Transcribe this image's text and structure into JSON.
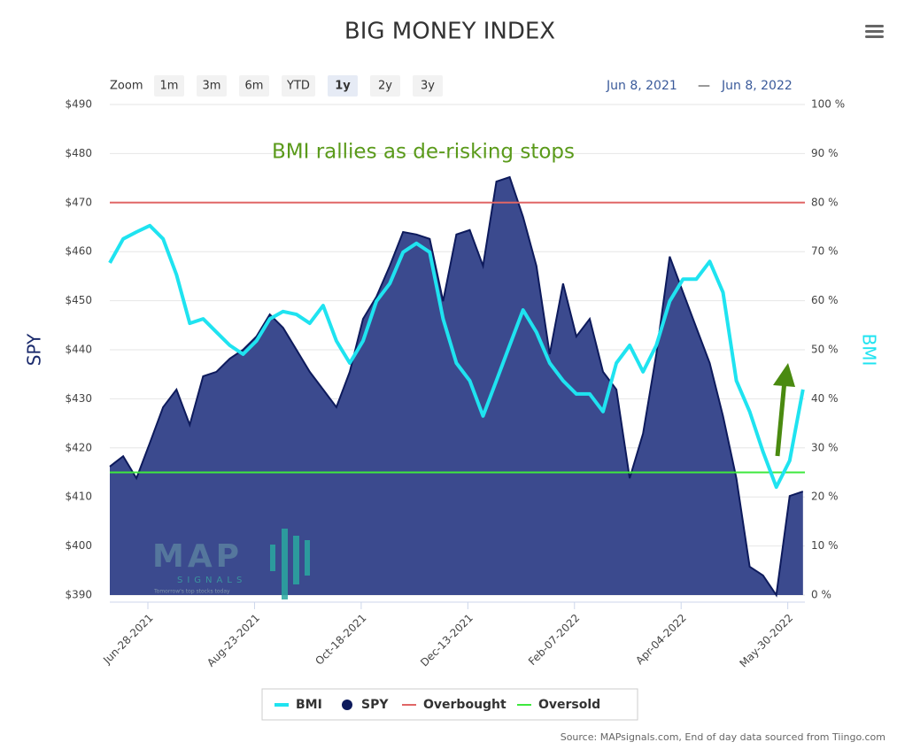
{
  "chart_data": {
    "type": "combo",
    "title": "BIG MONEY INDEX",
    "annotation": "BMI rallies as de-risking stops",
    "source": "Source: MAPsignals.com, End of day data sourced from Tiingo.com",
    "zoom": {
      "label": "Zoom",
      "buttons": [
        "1m",
        "3m",
        "6m",
        "YTD",
        "1y",
        "2y",
        "3y"
      ],
      "selected": 4
    },
    "range": {
      "from": "Jun 8, 2021",
      "sep": "—",
      "to": "Jun 8, 2022"
    },
    "logo": {
      "name": "MAP",
      "sub": "SIGNALS",
      "tagline": "Tomorrow's top stocks today"
    },
    "ylabel": "SPY",
    "y2label": "BMI",
    "xlim": [
      "2021-06-08",
      "2022-06-08"
    ],
    "xticks": [
      {
        "value": "2021-06-28",
        "label": "Jun-28-2021"
      },
      {
        "value": "2021-08-23",
        "label": "Aug-23-2021"
      },
      {
        "value": "2021-10-18",
        "label": "Oct-18-2021"
      },
      {
        "value": "2021-12-13",
        "label": "Dec-13-2021"
      },
      {
        "value": "2022-02-07",
        "label": "Feb-07-2022"
      },
      {
        "value": "2022-04-04",
        "label": "Apr-04-2022"
      },
      {
        "value": "2022-05-30",
        "label": "May-30-2022"
      }
    ],
    "ylim": [
      390,
      490
    ],
    "yticks": [
      {
        "value": 390,
        "label": "$390"
      },
      {
        "value": 400,
        "label": "$400"
      },
      {
        "value": 410,
        "label": "$410"
      },
      {
        "value": 420,
        "label": "$420"
      },
      {
        "value": 430,
        "label": "$430"
      },
      {
        "value": 440,
        "label": "$440"
      },
      {
        "value": 450,
        "label": "$450"
      },
      {
        "value": 460,
        "label": "$460"
      },
      {
        "value": 470,
        "label": "$470"
      },
      {
        "value": 480,
        "label": "$480"
      },
      {
        "value": 490,
        "label": "$490"
      }
    ],
    "y2lim": [
      0,
      100
    ],
    "y2ticks": [
      {
        "value": 0,
        "label": "0 %"
      },
      {
        "value": 10,
        "label": "10 %"
      },
      {
        "value": 20,
        "label": "20 %"
      },
      {
        "value": 30,
        "label": "30 %"
      },
      {
        "value": 40,
        "label": "40 %"
      },
      {
        "value": 50,
        "label": "50 %"
      },
      {
        "value": 60,
        "label": "60 %"
      },
      {
        "value": 70,
        "label": "70 %"
      },
      {
        "value": 80,
        "label": "80 %"
      },
      {
        "value": 90,
        "label": "90 %"
      },
      {
        "value": 100,
        "label": "100 %"
      }
    ],
    "grid": true,
    "x": [
      "2021-06-08",
      "2021-06-15",
      "2021-06-22",
      "2021-06-29",
      "2021-07-06",
      "2021-07-13",
      "2021-07-20",
      "2021-07-27",
      "2021-08-03",
      "2021-08-10",
      "2021-08-17",
      "2021-08-24",
      "2021-08-31",
      "2021-09-07",
      "2021-09-14",
      "2021-09-21",
      "2021-09-28",
      "2021-10-05",
      "2021-10-12",
      "2021-10-19",
      "2021-10-26",
      "2021-11-02",
      "2021-11-09",
      "2021-11-16",
      "2021-11-23",
      "2021-11-30",
      "2021-12-07",
      "2021-12-14",
      "2021-12-21",
      "2021-12-28",
      "2022-01-04",
      "2022-01-11",
      "2022-01-18",
      "2022-01-25",
      "2022-02-01",
      "2022-02-08",
      "2022-02-15",
      "2022-02-22",
      "2022-03-01",
      "2022-03-08",
      "2022-03-15",
      "2022-03-22",
      "2022-03-29",
      "2022-04-05",
      "2022-04-12",
      "2022-04-19",
      "2022-04-26",
      "2022-05-03",
      "2022-05-10",
      "2022-05-17",
      "2022-05-24",
      "2022-05-31",
      "2022-06-07"
    ],
    "series": [
      {
        "name": "BMI",
        "type": "line",
        "axis": "y2",
        "color": "#1fe3f0",
        "values": [
          67.7,
          72.6,
          74,
          75.3,
          72.6,
          65.3,
          55.4,
          56.3,
          53.6,
          50.9,
          49.1,
          51.8,
          56.3,
          57.8,
          57.2,
          55.4,
          59,
          51.8,
          47.3,
          51.8,
          59.9,
          63.5,
          69.9,
          71.7,
          69.9,
          56.3,
          47.3,
          43.7,
          36.5,
          43.7,
          50.9,
          58.1,
          53.6,
          47.3,
          43.7,
          41,
          41,
          37.4,
          47.3,
          50.9,
          45.5,
          50.9,
          59.9,
          64.4,
          64.4,
          68,
          61.7,
          43.7,
          37.4,
          29.2,
          22,
          27.4,
          41.9
        ]
      },
      {
        "name": "SPY",
        "type": "area",
        "axis": "y",
        "color": "#0d1a5c",
        "fill": "#3b4a8e",
        "values": [
          416.2,
          418.3,
          413.8,
          421,
          428.3,
          431.9,
          424.7,
          434.6,
          435.5,
          438.2,
          440,
          442.7,
          447.2,
          444.5,
          440,
          435.5,
          431.9,
          428.3,
          435.5,
          446.3,
          450.8,
          457.1,
          464,
          463.5,
          462.6,
          449.9,
          463.5,
          464.4,
          457.1,
          474.3,
          475.2,
          467.1,
          457.1,
          439.1,
          453.5,
          442.7,
          446.3,
          435.5,
          431.9,
          413.8,
          422.9,
          439.1,
          459,
          451.7,
          444.5,
          437.3,
          426.5,
          413.8,
          395.8,
          394,
          390,
          410.2,
          411.1
        ]
      },
      {
        "name": "Overbought",
        "type": "level",
        "axis": "y2",
        "color": "#e06666",
        "level": 80
      },
      {
        "name": "Oversold",
        "type": "level",
        "axis": "y2",
        "color": "#3ee83e",
        "level": 25
      }
    ]
  }
}
